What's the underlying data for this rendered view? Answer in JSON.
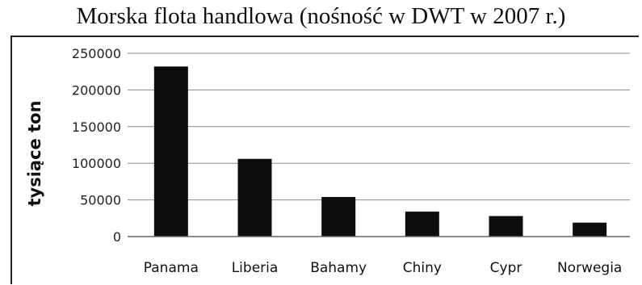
{
  "chart_data": {
    "type": "bar",
    "title": "Morska flota handlowa (nośność w DWT w 2007 r.)",
    "xlabel": "",
    "ylabel": "tysiące ton",
    "categories": [
      "Panama",
      "Liberia",
      "Bahamy",
      "Chiny",
      "Cypr",
      "Norwegia"
    ],
    "values": [
      232000,
      106000,
      54000,
      34000,
      28000,
      19000
    ],
    "ylim": [
      0,
      250000
    ],
    "yticks": [
      "250000",
      "200000",
      "150000",
      "100000",
      "50000",
      "0"
    ],
    "grid": true,
    "legend": "none",
    "bar_color": "#0d0d0d"
  }
}
